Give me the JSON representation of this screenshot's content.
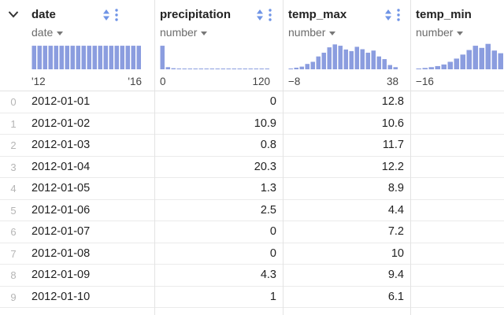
{
  "columns": [
    {
      "key": "date",
      "name": "date",
      "dtype": "date",
      "range_min": "'12",
      "range_max": "'16",
      "histogram": [
        88,
        88,
        88,
        88,
        88,
        88,
        88,
        88,
        88,
        88,
        88,
        88,
        88,
        88,
        88,
        88,
        88,
        88,
        88,
        88
      ],
      "values": [
        "2012-01-01",
        "2012-01-02",
        "2012-01-03",
        "2012-01-04",
        "2012-01-05",
        "2012-01-06",
        "2012-01-07",
        "2012-01-08",
        "2012-01-09",
        "2012-01-10"
      ]
    },
    {
      "key": "precipitation",
      "name": "precipitation",
      "dtype": "number",
      "range_min": "0",
      "range_max": "120",
      "histogram": [
        88,
        8,
        4,
        3,
        2,
        2,
        2,
        2,
        2,
        1,
        1,
        1,
        1,
        1,
        1,
        1,
        1,
        1,
        1,
        1
      ],
      "values": [
        "0",
        "10.9",
        "0.8",
        "20.3",
        "1.3",
        "2.5",
        "0",
        "0",
        "4.3",
        "1"
      ]
    },
    {
      "key": "temp_max",
      "name": "temp_max",
      "dtype": "number",
      "range_min": "−8",
      "range_max": "38",
      "histogram": [
        3,
        6,
        10,
        20,
        28,
        48,
        62,
        82,
        93,
        88,
        74,
        68,
        84,
        75,
        62,
        70,
        48,
        38,
        16,
        8
      ],
      "values": [
        "12.8",
        "10.6",
        "11.7",
        "12.2",
        "8.9",
        "4.4",
        "7.2",
        "10",
        "9.4",
        "6.1"
      ]
    },
    {
      "key": "temp_min",
      "name": "temp_min",
      "dtype": "number",
      "range_min": "−16",
      "range_max": "",
      "histogram": [
        3,
        5,
        8,
        12,
        18,
        28,
        40,
        55,
        72,
        88,
        80,
        95,
        70,
        60
      ],
      "values": [
        "",
        "",
        "",
        "",
        "",
        "",
        "",
        "",
        "",
        ""
      ]
    }
  ],
  "row_indices": [
    "0",
    "1",
    "2",
    "3",
    "4",
    "5",
    "6",
    "7",
    "8",
    "9"
  ],
  "colors": {
    "accent": "#8b9ddf",
    "sort_icon": "#6f94e6",
    "border": "#e3e3e3"
  }
}
